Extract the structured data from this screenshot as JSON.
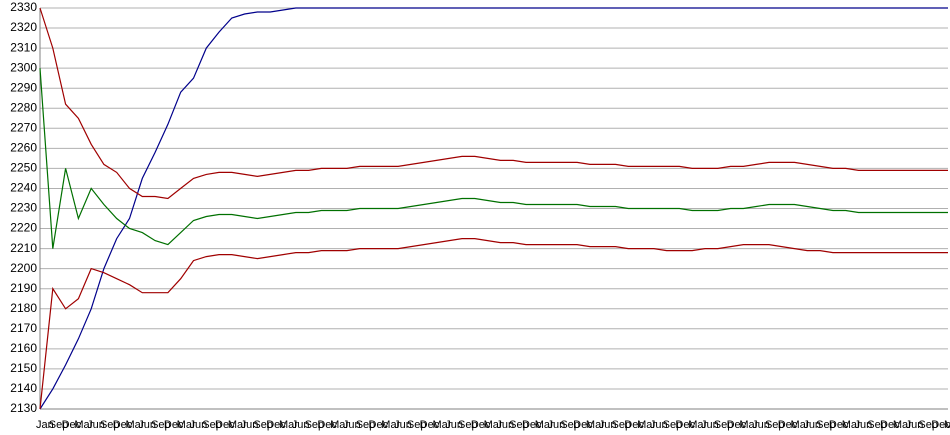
{
  "chart_data": {
    "type": "line",
    "categories": [
      "Jan",
      "Sep",
      "Dec",
      "Mar",
      "Jun",
      "Sep",
      "Dec",
      "Mar",
      "Jun",
      "Sep",
      "Dec",
      "Mar",
      "Jun",
      "Sep",
      "Dec",
      "Mar",
      "Jun",
      "Sep",
      "Dec",
      "Mar",
      "Jun",
      "Sep",
      "Dec",
      "Mar",
      "Jun",
      "Sep",
      "Dec",
      "Mar",
      "Jun",
      "Sep",
      "Dec",
      "Mar",
      "Jun",
      "Sep",
      "Dec",
      "Mar",
      "Jun",
      "Sep",
      "Dec",
      "Mar",
      "Jun",
      "Sep",
      "Dec",
      "Mar",
      "Jun",
      "Sep",
      "Dec",
      "Mar",
      "Jun",
      "Sep",
      "Dec",
      "Mar",
      "Jun",
      "Sep",
      "Dec",
      "Mar",
      "Jun",
      "Sep",
      "Dec",
      "Mar",
      "Jun",
      "Sep",
      "Dec",
      "Mar",
      "Jun",
      "Sep",
      "Dec",
      "Mar",
      "Jun",
      "Sep",
      "Dec",
      "Mar"
    ],
    "series": [
      {
        "color": "#00008b",
        "values": [
          2130,
          2140,
          2152,
          2165,
          2180,
          2200,
          2215,
          2225,
          2245,
          2258,
          2272,
          2288,
          2295,
          2310,
          2318,
          2325,
          2327,
          2328,
          2328,
          2329,
          2330,
          2330,
          2330,
          2330,
          2330,
          2330,
          2330,
          2330,
          2330,
          2330,
          2330,
          2330,
          2330,
          2330,
          2330,
          2330,
          2330,
          2330,
          2330,
          2330,
          2330,
          2330,
          2330,
          2330,
          2330,
          2330,
          2330,
          2330,
          2330,
          2330,
          2330,
          2330,
          2330,
          2330,
          2330,
          2330,
          2330,
          2330,
          2330,
          2330,
          2330,
          2330,
          2330,
          2330,
          2330,
          2330,
          2330,
          2330,
          2330,
          2330,
          2330,
          2330
        ]
      },
      {
        "color": "#a00000",
        "values": [
          2330,
          2310,
          2282,
          2275,
          2262,
          2252,
          2248,
          2240,
          2236,
          2236,
          2235,
          2240,
          2245,
          2247,
          2248,
          2248,
          2247,
          2246,
          2247,
          2248,
          2249,
          2249,
          2250,
          2250,
          2250,
          2251,
          2251,
          2251,
          2251,
          2252,
          2253,
          2254,
          2255,
          2256,
          2256,
          2255,
          2254,
          2254,
          2253,
          2253,
          2253,
          2253,
          2253,
          2252,
          2252,
          2252,
          2251,
          2251,
          2251,
          2251,
          2251,
          2250,
          2250,
          2250,
          2251,
          2251,
          2252,
          2253,
          2253,
          2253,
          2252,
          2251,
          2250,
          2250,
          2249,
          2249,
          2249,
          2249,
          2249,
          2249,
          2249,
          2249
        ]
      },
      {
        "color": "#007000",
        "values": [
          2300,
          2210,
          2250,
          2225,
          2240,
          2232,
          2225,
          2220,
          2218,
          2214,
          2212,
          2218,
          2224,
          2226,
          2227,
          2227,
          2226,
          2225,
          2226,
          2227,
          2228,
          2228,
          2229,
          2229,
          2229,
          2230,
          2230,
          2230,
          2230,
          2231,
          2232,
          2233,
          2234,
          2235,
          2235,
          2234,
          2233,
          2233,
          2232,
          2232,
          2232,
          2232,
          2232,
          2231,
          2231,
          2231,
          2230,
          2230,
          2230,
          2230,
          2230,
          2229,
          2229,
          2229,
          2230,
          2230,
          2231,
          2232,
          2232,
          2232,
          2231,
          2230,
          2229,
          2229,
          2228,
          2228,
          2228,
          2228,
          2228,
          2228,
          2228,
          2228
        ]
      },
      {
        "color": "#a00000",
        "values": [
          2130,
          2190,
          2180,
          2185,
          2200,
          2198,
          2195,
          2192,
          2188,
          2188,
          2188,
          2195,
          2204,
          2206,
          2207,
          2207,
          2206,
          2205,
          2206,
          2207,
          2208,
          2208,
          2209,
          2209,
          2209,
          2210,
          2210,
          2210,
          2210,
          2211,
          2212,
          2213,
          2214,
          2215,
          2215,
          2214,
          2213,
          2213,
          2212,
          2212,
          2212,
          2212,
          2212,
          2211,
          2211,
          2211,
          2210,
          2210,
          2210,
          2209,
          2209,
          2209,
          2210,
          2210,
          2211,
          2212,
          2212,
          2212,
          2211,
          2210,
          2209,
          2209,
          2208,
          2208,
          2208,
          2208,
          2208,
          2208,
          2208,
          2208,
          2208,
          2208
        ]
      }
    ],
    "ylim": [
      2130,
      2330
    ],
    "yticks": [
      2130,
      2140,
      2150,
      2160,
      2170,
      2180,
      2190,
      2200,
      2210,
      2220,
      2230,
      2240,
      2250,
      2260,
      2270,
      2280,
      2290,
      2300,
      2310,
      2320,
      2330
    ],
    "grid": true
  }
}
